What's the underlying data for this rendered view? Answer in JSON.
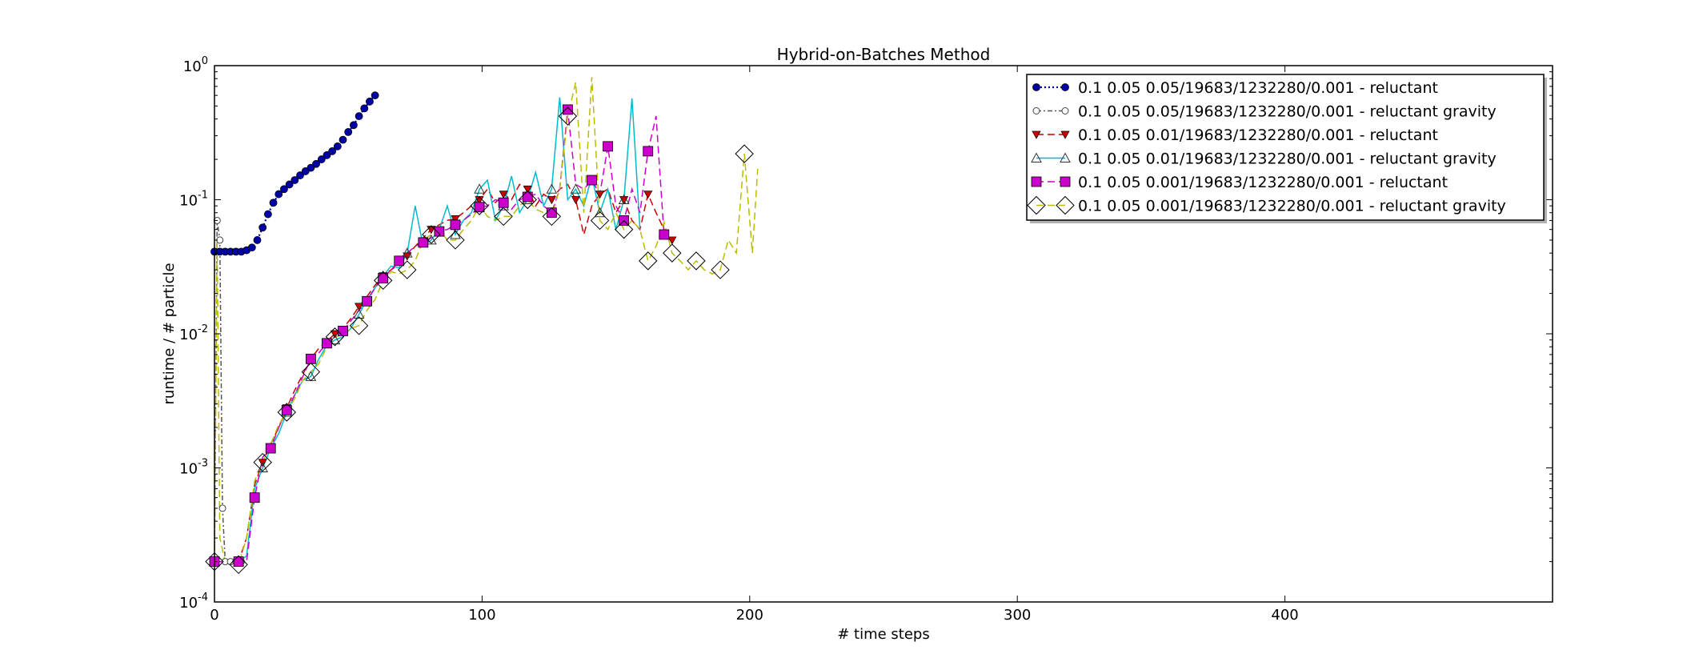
{
  "chart_data": {
    "type": "line",
    "title": "Hybrid-on-Batches Method",
    "xlabel": "# time steps",
    "ylabel": "runtime / # particle",
    "xlim": [
      0,
      500
    ],
    "ylim": [
      0.0001,
      1
    ],
    "yscale": "log",
    "xticks": [
      0,
      100,
      200,
      300,
      400
    ],
    "xtick_labels": [
      "0",
      "100",
      "200",
      "300",
      "400"
    ],
    "yticks": [
      0.0001,
      0.001,
      0.01,
      0.1,
      1
    ],
    "ytick_labels": [
      {
        "base": "10",
        "exp": "-4"
      },
      {
        "base": "10",
        "exp": "-3"
      },
      {
        "base": "10",
        "exp": "-2"
      },
      {
        "base": "10",
        "exp": "-1"
      },
      {
        "base": "10",
        "exp": "0"
      }
    ],
    "grid": false,
    "legend_position": "top-right",
    "series": [
      {
        "name": "0.1 0.05 0.05/19683/1232280/0.001 - reluctant",
        "color": "#0000aa",
        "linestyle": "dotted",
        "marker": "circle-filled",
        "x": [
          0,
          2,
          4,
          6,
          8,
          10,
          12,
          14,
          16,
          18,
          20,
          22,
          24,
          26,
          28,
          30,
          32,
          34,
          36,
          38,
          40,
          42,
          44,
          46,
          48,
          50,
          52,
          54,
          56,
          58,
          60
        ],
        "y": [
          0.041,
          0.041,
          0.041,
          0.041,
          0.041,
          0.041,
          0.042,
          0.044,
          0.05,
          0.062,
          0.078,
          0.095,
          0.11,
          0.12,
          0.13,
          0.14,
          0.152,
          0.163,
          0.173,
          0.185,
          0.2,
          0.215,
          0.23,
          0.25,
          0.28,
          0.32,
          0.36,
          0.42,
          0.48,
          0.54,
          0.6
        ]
      },
      {
        "name": "0.1 0.05 0.05/19683/1232280/0.001 - reluctant gravity",
        "color": "#555555",
        "linestyle": "dashdot",
        "marker": "circle-open",
        "x": [
          0,
          1,
          2,
          3,
          4,
          6,
          8,
          10
        ],
        "y": [
          0.0002,
          0.07,
          0.05,
          0.0005,
          0.0002,
          0.0002,
          0.0002,
          0.0002
        ]
      },
      {
        "name": "0.1 0.05 0.01/19683/1232280/0.001 - reluctant",
        "color": "#cc0000",
        "linestyle": "dashed",
        "marker": "triangle-down-filled",
        "x": [
          0,
          3,
          6,
          9,
          12,
          15,
          18,
          21,
          24,
          27,
          30,
          33,
          36,
          39,
          42,
          45,
          48,
          51,
          54,
          57,
          60,
          63,
          66,
          69,
          72,
          75,
          78,
          81,
          84,
          87,
          90,
          93,
          96,
          99,
          102,
          105,
          108,
          111,
          114,
          117,
          120,
          123,
          126,
          129,
          132,
          135,
          138,
          141,
          144,
          147,
          150,
          153,
          156,
          159,
          162,
          165,
          168,
          171
        ],
        "y": [
          0.0002,
          0.0002,
          0.0002,
          0.0002,
          0.0003,
          0.00075,
          0.0011,
          0.0015,
          0.002,
          0.0028,
          0.0038,
          0.005,
          0.0065,
          0.0078,
          0.0088,
          0.01,
          0.011,
          0.013,
          0.016,
          0.019,
          0.023,
          0.027,
          0.03,
          0.033,
          0.038,
          0.045,
          0.052,
          0.06,
          0.065,
          0.07,
          0.072,
          0.08,
          0.09,
          0.1,
          0.12,
          0.095,
          0.11,
          0.1,
          0.13,
          0.12,
          0.09,
          0.11,
          0.1,
          0.12,
          0.13,
          0.1,
          0.055,
          0.09,
          0.11,
          0.12,
          0.08,
          0.1,
          0.07,
          0.06,
          0.11,
          0.08,
          0.06,
          0.05
        ]
      },
      {
        "name": "0.1 0.05 0.01/19683/1232280/0.001 - reluctant gravity",
        "color": "#00bbcc",
        "linestyle": "solid",
        "marker": "triangle-up-open",
        "x": [
          0,
          3,
          6,
          9,
          12,
          15,
          18,
          21,
          24,
          27,
          30,
          33,
          36,
          39,
          42,
          45,
          48,
          51,
          54,
          57,
          60,
          63,
          66,
          69,
          72,
          75,
          78,
          81,
          84,
          87,
          90,
          93,
          96,
          99,
          102,
          105,
          108,
          111,
          114,
          117,
          120,
          123,
          126,
          129,
          132,
          135,
          138,
          141,
          144,
          147,
          150,
          153,
          156,
          159
        ],
        "y": [
          0.0002,
          0.0002,
          0.0002,
          0.0002,
          0.00022,
          0.0007,
          0.001,
          0.0014,
          0.0018,
          0.0026,
          0.0035,
          0.0045,
          0.0048,
          0.0065,
          0.0082,
          0.009,
          0.0095,
          0.011,
          0.014,
          0.018,
          0.022,
          0.027,
          0.032,
          0.031,
          0.04,
          0.09,
          0.045,
          0.05,
          0.06,
          0.09,
          0.055,
          0.07,
          0.08,
          0.12,
          0.14,
          0.07,
          0.09,
          0.15,
          0.08,
          0.1,
          0.16,
          0.09,
          0.12,
          0.58,
          0.1,
          0.12,
          0.09,
          0.15,
          0.08,
          0.12,
          0.06,
          0.1,
          0.57,
          0.06
        ]
      },
      {
        "name": "0.1 0.05 0.001/19683/1232280/0.001 - reluctant",
        "color": "#cc00cc",
        "linestyle": "dashed",
        "marker": "square-filled",
        "x": [
          0,
          3,
          6,
          9,
          12,
          15,
          18,
          21,
          24,
          27,
          30,
          33,
          36,
          39,
          42,
          45,
          48,
          51,
          54,
          57,
          60,
          63,
          66,
          69,
          72,
          75,
          78,
          81,
          84,
          87,
          90,
          93,
          96,
          99,
          102,
          105,
          108,
          111,
          114,
          117,
          120,
          123,
          126,
          129,
          132,
          135,
          138,
          141,
          144,
          147,
          150,
          153,
          156,
          159,
          162,
          165,
          168
        ],
        "y": [
          0.0002,
          0.0002,
          0.0002,
          0.0002,
          0.0002,
          0.0006,
          0.0012,
          0.0014,
          0.002,
          0.0027,
          0.0035,
          0.0048,
          0.0065,
          0.0072,
          0.0085,
          0.0098,
          0.0105,
          0.0125,
          0.015,
          0.0175,
          0.022,
          0.026,
          0.03,
          0.035,
          0.04,
          0.045,
          0.048,
          0.052,
          0.058,
          0.06,
          0.065,
          0.07,
          0.078,
          0.088,
          0.09,
          0.1,
          0.095,
          0.085,
          0.1,
          0.105,
          0.11,
          0.09,
          0.08,
          0.12,
          0.47,
          0.13,
          0.12,
          0.14,
          0.11,
          0.25,
          0.09,
          0.07,
          0.12,
          0.08,
          0.23,
          0.42,
          0.055
        ]
      },
      {
        "name": "0.1 0.05 0.001/19683/1232280/0.001 - reluctant gravity",
        "color": "#bbbb00",
        "linestyle": "dashed",
        "marker": "diamond-open",
        "x": [
          0,
          1,
          2,
          4,
          6,
          9,
          12,
          15,
          18,
          21,
          24,
          27,
          30,
          33,
          36,
          39,
          42,
          45,
          48,
          51,
          54,
          57,
          60,
          63,
          66,
          69,
          72,
          75,
          78,
          81,
          84,
          87,
          90,
          93,
          96,
          99,
          102,
          105,
          108,
          111,
          114,
          117,
          120,
          123,
          126,
          129,
          132,
          135,
          138,
          141,
          144,
          147,
          150,
          153,
          156,
          159,
          162,
          165,
          168,
          171,
          174,
          177,
          180,
          183,
          186,
          189,
          192,
          195,
          198,
          201,
          203
        ],
        "y": [
          0.0002,
          0.05,
          0.0003,
          0.0002,
          0.0002,
          0.00019,
          0.0003,
          0.0008,
          0.0011,
          0.0015,
          0.0021,
          0.0026,
          0.0033,
          0.0045,
          0.0052,
          0.006,
          0.008,
          0.0095,
          0.0098,
          0.011,
          0.0115,
          0.015,
          0.018,
          0.025,
          0.029,
          0.028,
          0.03,
          0.035,
          0.05,
          0.055,
          0.06,
          0.05,
          0.05,
          0.06,
          0.07,
          0.09,
          0.075,
          0.07,
          0.075,
          0.075,
          0.09,
          0.1,
          0.085,
          0.08,
          0.075,
          0.12,
          0.42,
          0.75,
          0.08,
          0.82,
          0.07,
          0.06,
          0.08,
          0.06,
          0.07,
          0.06,
          0.035,
          0.045,
          0.068,
          0.04,
          0.035,
          0.03,
          0.035,
          0.03,
          0.028,
          0.03,
          0.05,
          0.04,
          0.22,
          0.04,
          0.17
        ]
      }
    ],
    "markers_every": [
      {
        "series": 0,
        "x": [
          0,
          2,
          4,
          6,
          8,
          10,
          12,
          14,
          16,
          18,
          20,
          22,
          24,
          26,
          28,
          30,
          32,
          34,
          36,
          38,
          40,
          42,
          44,
          46,
          48,
          50,
          52,
          54,
          56,
          58,
          60
        ]
      },
      {
        "series": 4,
        "x": [
          0,
          9,
          15,
          21,
          27,
          36,
          42,
          48,
          57,
          63,
          69,
          78,
          84,
          90,
          99,
          108,
          117,
          126,
          132,
          141,
          147,
          153,
          162,
          168
        ]
      },
      {
        "series": 5,
        "x": [
          0,
          9,
          18,
          27,
          36,
          45,
          54,
          63,
          72,
          81,
          90,
          99,
          108,
          117,
          126,
          132,
          144,
          153,
          162,
          171,
          180,
          189,
          198
        ]
      }
    ]
  }
}
